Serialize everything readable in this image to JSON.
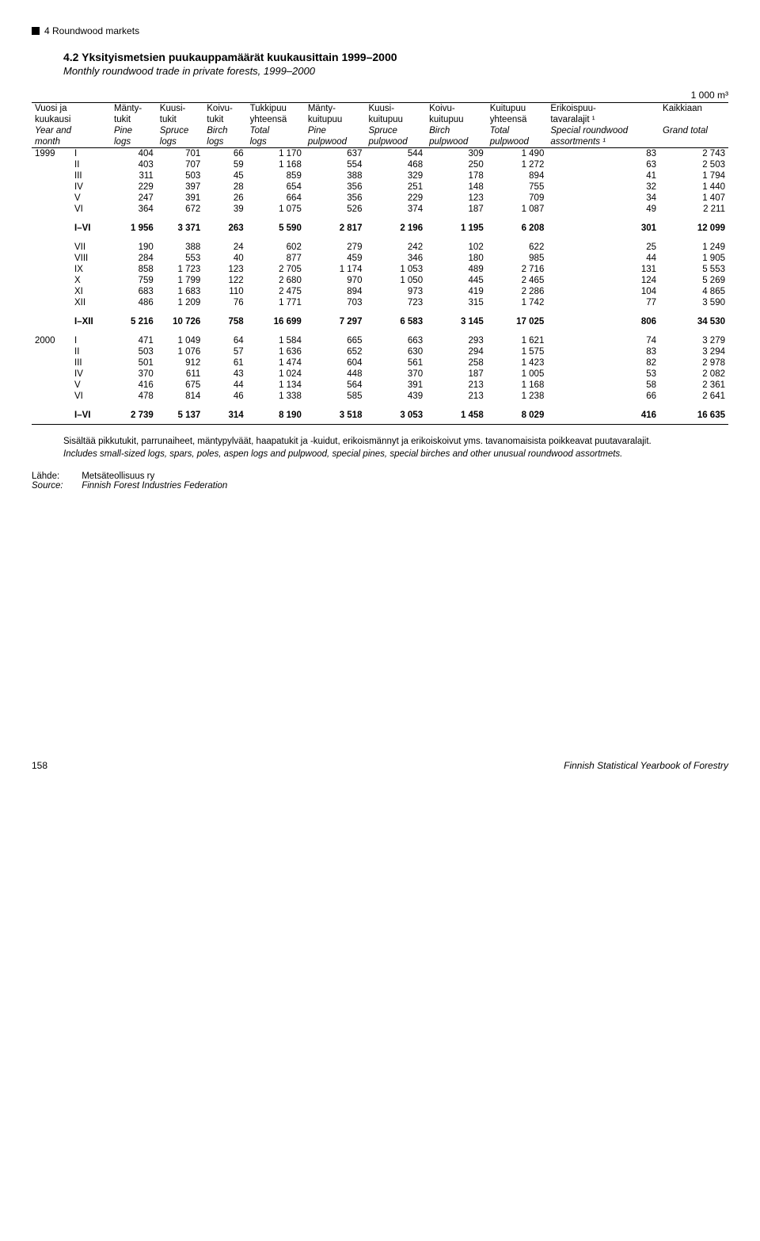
{
  "section": "4 Roundwood markets",
  "title_number": "4.2",
  "title_fi": "Yksityismetsien puukauppamäärät kuukausittain 1999–2000",
  "title_en": "Monthly roundwood trade in private forests, 1999–2000",
  "unit": "1 000 m³",
  "header": {
    "r1": [
      "Vuosi ja",
      "Mänty-",
      "Kuusi-",
      "Koivu-",
      "Tukkipuu",
      "Mänty-",
      "Kuusi-",
      "Koivu-",
      "Kuitupuu",
      "Erikoispuu-",
      "Kaikkiaan"
    ],
    "r2": [
      "kuukausi",
      "tukit",
      "tukit",
      "tukit",
      "yhteensä",
      "kuitupuu",
      "kuitupuu",
      "kuitupuu",
      "yhteensä",
      "tavaralajit ¹",
      ""
    ],
    "r3": [
      "Year and",
      "Pine",
      "Spruce",
      "Birch",
      "Total",
      "Pine",
      "Spruce",
      "Birch",
      "Total",
      "Special roundwood",
      "Grand total"
    ],
    "r4": [
      "month",
      "logs",
      "logs",
      "logs",
      "logs",
      "pulpwood",
      "pulpwood",
      "pulpwood",
      "pulpwood",
      "assortments ¹",
      ""
    ]
  },
  "rows": [
    {
      "year": "1999",
      "month": "I",
      "v": [
        "404",
        "701",
        "66",
        "1 170",
        "637",
        "544",
        "309",
        "1 490",
        "83",
        "2 743"
      ]
    },
    {
      "year": "",
      "month": "II",
      "v": [
        "403",
        "707",
        "59",
        "1 168",
        "554",
        "468",
        "250",
        "1 272",
        "63",
        "2 503"
      ]
    },
    {
      "year": "",
      "month": "III",
      "v": [
        "311",
        "503",
        "45",
        "859",
        "388",
        "329",
        "178",
        "894",
        "41",
        "1 794"
      ]
    },
    {
      "year": "",
      "month": "IV",
      "v": [
        "229",
        "397",
        "28",
        "654",
        "356",
        "251",
        "148",
        "755",
        "32",
        "1 440"
      ]
    },
    {
      "year": "",
      "month": "V",
      "v": [
        "247",
        "391",
        "26",
        "664",
        "356",
        "229",
        "123",
        "709",
        "34",
        "1 407"
      ]
    },
    {
      "year": "",
      "month": "VI",
      "v": [
        "364",
        "672",
        "39",
        "1 075",
        "526",
        "374",
        "187",
        "1 087",
        "49",
        "2 211"
      ]
    },
    {
      "spacer": true
    },
    {
      "bold": true,
      "year": "",
      "month": "I–VI",
      "v": [
        "1 956",
        "3 371",
        "263",
        "5 590",
        "2 817",
        "2 196",
        "1 195",
        "6 208",
        "301",
        "12 099"
      ]
    },
    {
      "spacer": true
    },
    {
      "year": "",
      "month": "VII",
      "v": [
        "190",
        "388",
        "24",
        "602",
        "279",
        "242",
        "102",
        "622",
        "25",
        "1 249"
      ]
    },
    {
      "year": "",
      "month": "VIII",
      "v": [
        "284",
        "553",
        "40",
        "877",
        "459",
        "346",
        "180",
        "985",
        "44",
        "1 905"
      ]
    },
    {
      "year": "",
      "month": "IX",
      "v": [
        "858",
        "1 723",
        "123",
        "2 705",
        "1 174",
        "1 053",
        "489",
        "2 716",
        "131",
        "5 553"
      ]
    },
    {
      "year": "",
      "month": "X",
      "v": [
        "759",
        "1 799",
        "122",
        "2 680",
        "970",
        "1 050",
        "445",
        "2 465",
        "124",
        "5 269"
      ]
    },
    {
      "year": "",
      "month": "XI",
      "v": [
        "683",
        "1 683",
        "110",
        "2 475",
        "894",
        "973",
        "419",
        "2 286",
        "104",
        "4 865"
      ]
    },
    {
      "year": "",
      "month": "XII",
      "v": [
        "486",
        "1 209",
        "76",
        "1 771",
        "703",
        "723",
        "315",
        "1 742",
        "77",
        "3 590"
      ]
    },
    {
      "spacer": true
    },
    {
      "bold": true,
      "year": "",
      "month": "I–XII",
      "v": [
        "5 216",
        "10 726",
        "758",
        "16 699",
        "7 297",
        "6 583",
        "3 145",
        "17 025",
        "806",
        "34 530"
      ]
    },
    {
      "spacer": true
    },
    {
      "year": "2000",
      "month": "I",
      "v": [
        "471",
        "1 049",
        "64",
        "1 584",
        "665",
        "663",
        "293",
        "1 621",
        "74",
        "3 279"
      ]
    },
    {
      "year": "",
      "month": "II",
      "v": [
        "503",
        "1 076",
        "57",
        "1 636",
        "652",
        "630",
        "294",
        "1 575",
        "83",
        "3 294"
      ]
    },
    {
      "year": "",
      "month": "III",
      "v": [
        "501",
        "912",
        "61",
        "1 474",
        "604",
        "561",
        "258",
        "1 423",
        "82",
        "2 978"
      ]
    },
    {
      "year": "",
      "month": "IV",
      "v": [
        "370",
        "611",
        "43",
        "1 024",
        "448",
        "370",
        "187",
        "1 005",
        "53",
        "2 082"
      ]
    },
    {
      "year": "",
      "month": "V",
      "v": [
        "416",
        "675",
        "44",
        "1 134",
        "564",
        "391",
        "213",
        "1 168",
        "58",
        "2 361"
      ]
    },
    {
      "year": "",
      "month": "VI",
      "v": [
        "478",
        "814",
        "46",
        "1 338",
        "585",
        "439",
        "213",
        "1 238",
        "66",
        "2 641"
      ]
    },
    {
      "spacer": true
    },
    {
      "bold": true,
      "year": "",
      "month": "I–VI",
      "v": [
        "2 739",
        "5 137",
        "314",
        "8 190",
        "3 518",
        "3 053",
        "1 458",
        "8 029",
        "416",
        "16 635"
      ]
    }
  ],
  "footnote_fi": "Sisältää pikkutukit, parrunaiheet, mäntypylväät, haapatukit ja -kuidut, erikoismännyt ja erikoiskoivut yms. tavanomaisista poikkeavat puutavaralajit.",
  "footnote_en": "Includes small-sized logs, spars, poles, aspen logs and pulpwood, special pines, special birches and other unusual roundwood assortmets.",
  "source_label_fi": "Lähde:",
  "source_value_fi": "Metsäteollisuus ry",
  "source_label_en": "Source:",
  "source_value_en": "Finnish Forest Industries Federation",
  "page_number": "158",
  "footer_right": "Finnish Statistical Yearbook of Forestry"
}
